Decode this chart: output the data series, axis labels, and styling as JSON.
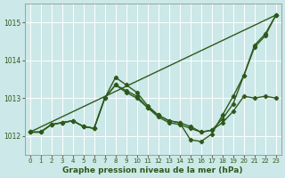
{
  "xlabel": "Graphe pression niveau de la mer (hPa)",
  "bg_color": "#cce8e8",
  "grid_color": "#ffffff",
  "line_color": "#2d5a1b",
  "ylim": [
    1011.5,
    1015.5
  ],
  "xlim": [
    -0.5,
    23.5
  ],
  "yticks": [
    1012,
    1013,
    1014,
    1015
  ],
  "xticks": [
    0,
    1,
    2,
    3,
    4,
    5,
    6,
    7,
    8,
    9,
    10,
    11,
    12,
    13,
    14,
    15,
    16,
    17,
    18,
    19,
    20,
    21,
    22,
    23
  ],
  "series": {
    "line1_x": [
      0,
      23
    ],
    "line1_y": [
      1012.1,
      1015.2
    ],
    "line2_x": [
      0,
      1,
      2,
      3,
      4,
      5,
      6,
      7,
      8,
      9,
      10,
      11,
      12,
      13,
      14,
      15,
      16,
      17,
      18,
      19,
      20,
      21,
      22,
      23
    ],
    "line2_y": [
      1012.1,
      1012.1,
      1012.3,
      1012.35,
      1012.4,
      1012.25,
      1012.2,
      1013.0,
      1013.55,
      1013.35,
      1013.15,
      1012.8,
      1012.55,
      1012.4,
      1012.35,
      1011.9,
      1011.85,
      1012.05,
      1012.55,
      1013.05,
      1013.6,
      1014.4,
      1014.7,
      1015.2
    ],
    "line3_x": [
      0,
      1,
      2,
      3,
      4,
      5,
      6,
      7,
      8,
      9,
      10,
      11,
      12,
      13,
      14,
      15,
      16,
      17,
      18,
      19,
      20,
      21,
      22,
      23
    ],
    "line3_y": [
      1012.1,
      1012.1,
      1012.3,
      1012.35,
      1012.4,
      1012.25,
      1012.2,
      1013.0,
      1013.35,
      1013.2,
      1013.05,
      1012.75,
      1012.55,
      1012.4,
      1012.35,
      1012.25,
      1012.1,
      1012.15,
      1012.45,
      1012.85,
      1013.6,
      1014.35,
      1014.65,
      1015.2
    ],
    "line4_x": [
      0,
      1,
      2,
      3,
      4,
      5,
      6,
      7,
      8,
      9,
      10,
      11,
      12,
      13,
      14,
      15,
      16,
      17,
      18,
      19,
      20,
      21,
      22,
      23
    ],
    "line4_y": [
      1012.1,
      1012.1,
      1012.3,
      1012.35,
      1012.4,
      1012.25,
      1012.2,
      1013.0,
      1013.35,
      1013.15,
      1013.0,
      1012.75,
      1012.5,
      1012.35,
      1012.3,
      1012.2,
      1012.1,
      1012.15,
      1012.35,
      1012.65,
      1013.05,
      1013.0,
      1013.05,
      1013.0
    ]
  },
  "marker": "D",
  "markersize": 2.2,
  "linewidth": 1.0
}
